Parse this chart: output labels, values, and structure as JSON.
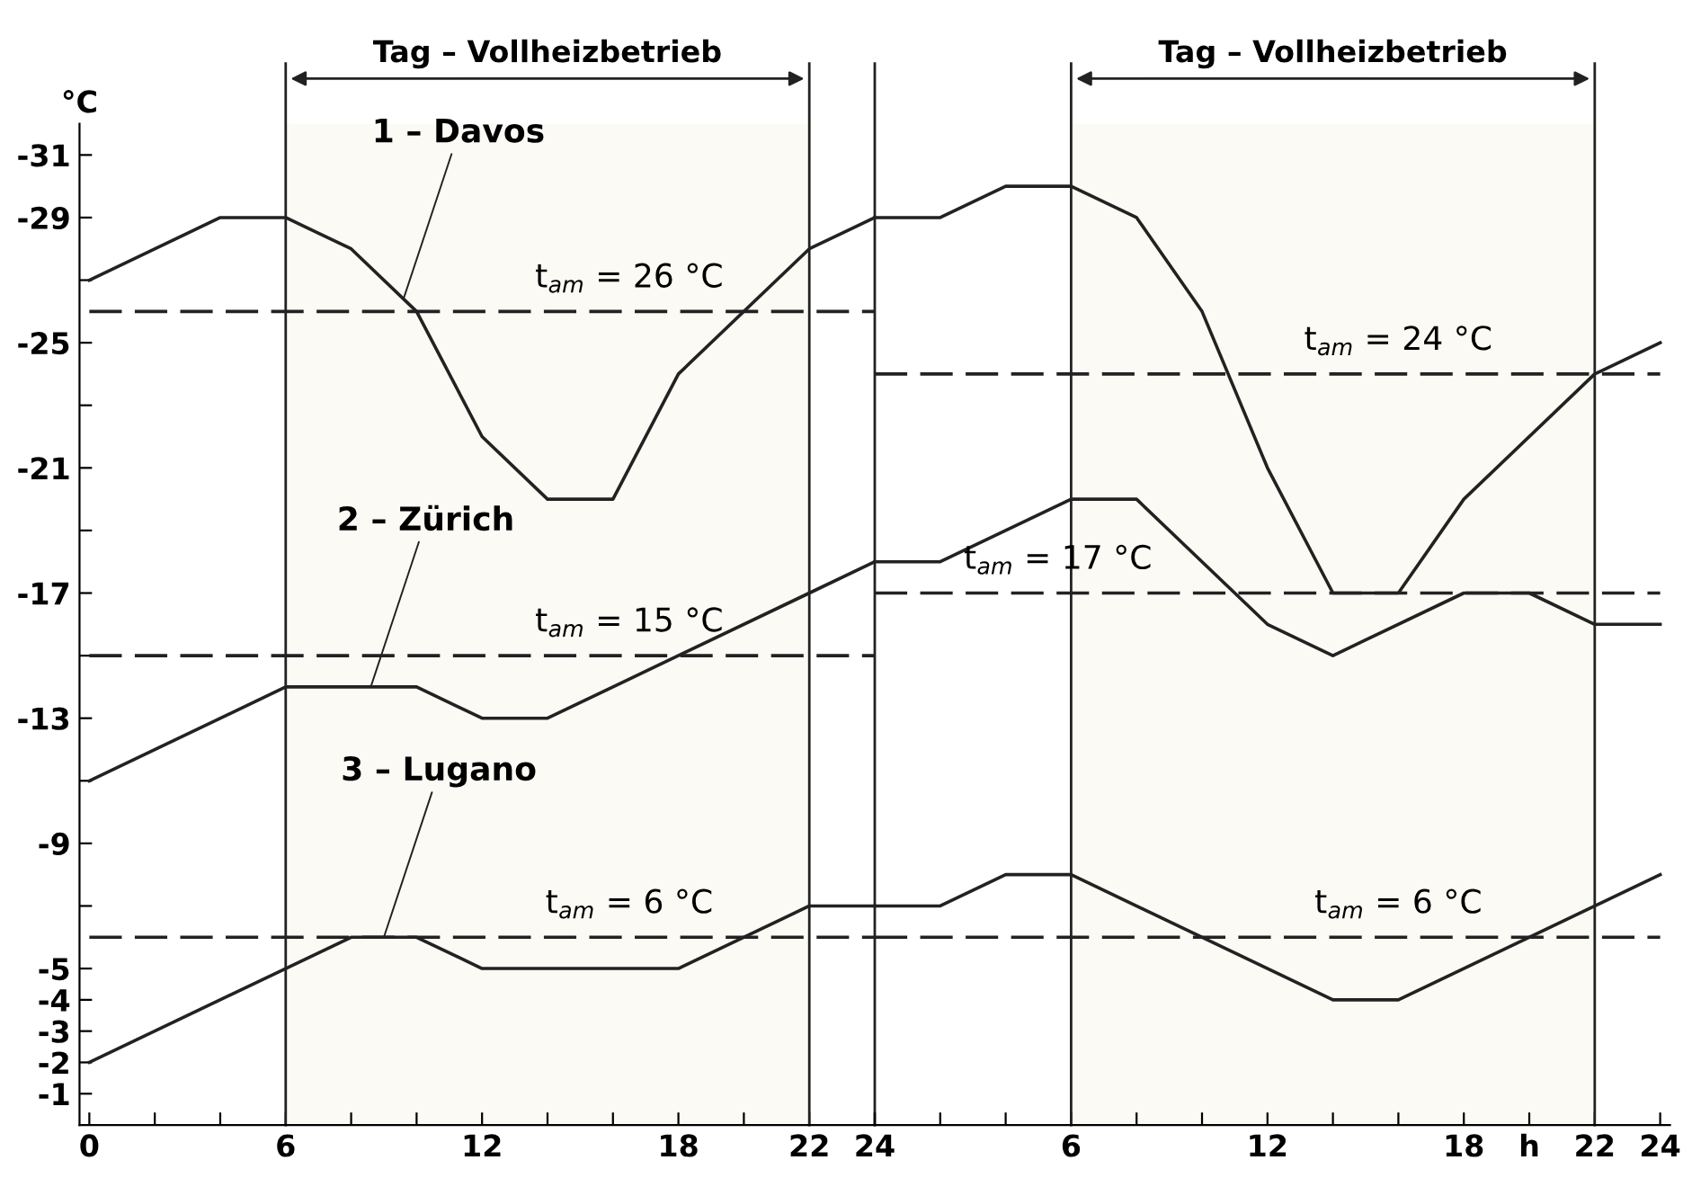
{
  "chart_data": [
    {
      "type": "line",
      "ylabel": "°C",
      "xlim": [
        -0.3,
        24
      ],
      "ylim": [
        0,
        -32
      ],
      "xticks": [
        0,
        {
          "value": 2,
          "label": null
        },
        {
          "value": 4,
          "label": null
        },
        6,
        {
          "value": 8,
          "label": null
        },
        {
          "value": 10,
          "label": null
        },
        12,
        {
          "value": 14,
          "label": null
        },
        {
          "value": 16,
          "label": null
        },
        18,
        {
          "value": 20,
          "label": null
        },
        22,
        24
      ],
      "yticks": [
        -31,
        -29,
        {
          "value": -27,
          "label": null
        },
        -25,
        {
          "value": -23,
          "label": null
        },
        -21,
        {
          "value": -19,
          "label": null
        },
        -17,
        {
          "value": -15,
          "label": null
        },
        -13,
        {
          "value": -11,
          "label": null
        },
        -9,
        {
          "value": -7,
          "label": null
        },
        -5,
        -4,
        -3,
        -2,
        -1
      ],
      "grid": false,
      "marker": "none",
      "series": [
        {
          "color": "#222222",
          "line_style": "solid",
          "x": [
            0,
            4,
            6,
            8,
            10,
            12,
            14,
            16,
            18,
            22,
            24
          ],
          "values": [
            -27,
            -29,
            -29,
            -28,
            -26,
            -22,
            -20,
            -20,
            -24,
            -28,
            -29
          ]
        },
        {
          "color": "#222222",
          "line_style": "solid",
          "x": [
            0,
            6,
            10,
            12,
            14,
            22,
            24
          ],
          "values": [
            -11,
            -14,
            -14,
            -13,
            -13,
            -17,
            -18
          ]
        },
        {
          "color": "#222222",
          "line_style": "solid",
          "x": [
            0,
            6,
            8,
            10,
            12,
            18,
            22,
            24
          ],
          "values": [
            -2,
            -5,
            -6,
            -6,
            -5,
            -5,
            -7,
            -7
          ]
        },
        {
          "color": "#222222",
          "line_style": "dashed",
          "x": [
            0,
            24
          ],
          "values": [
            -26,
            -26
          ]
        },
        {
          "color": "#222222",
          "line_style": "dashed",
          "x": [
            0,
            24
          ],
          "values": [
            -15,
            -15
          ]
        },
        {
          "color": "#222222",
          "line_style": "dashed",
          "x": [
            0,
            24
          ],
          "values": [
            -6,
            -6
          ]
        }
      ],
      "ref_lines": [
        {
          "axis": "x",
          "value": 6,
          "color": "#222222",
          "line_style": "solid"
        },
        {
          "axis": "x",
          "value": 22,
          "color": "#222222",
          "line_style": "solid"
        },
        {
          "axis": "x",
          "value": 24,
          "color": "#222222",
          "line_style": "solid"
        }
      ],
      "bands": [
        {
          "axis": "x",
          "from": 6,
          "to": 22,
          "label": "Tag – Vollheizbetrieb",
          "color": "#fbfaf4"
        }
      ],
      "annotations": [
        {
          "text": "1 – Davos",
          "x": 9.6,
          "y": -26.4
        },
        {
          "text": "2 – Zürich",
          "x": 8.6,
          "y": -14
        },
        {
          "text": "3 – Lugano",
          "x": 9,
          "y": -6
        },
        {
          "text": "t$_{am}$ = 26 °C",
          "x": 16.5,
          "y": -26
        },
        {
          "text": "t$_{am}$ = 15 °C",
          "x": 16.5,
          "y": -15
        },
        {
          "text": "t$_{am}$ = 6 °C",
          "x": 16.5,
          "y": -6
        }
      ]
    },
    {
      "type": "line",
      "tick_labels": "x",
      "xlim": [
        0,
        24.3
      ],
      "ylim": [
        0,
        -32
      ],
      "xticks": [
        {
          "value": 0,
          "label": null
        },
        {
          "value": 2,
          "label": null
        },
        {
          "value": 4,
          "label": null
        },
        6,
        {
          "value": 8,
          "label": null
        },
        {
          "value": 10,
          "label": null
        },
        12,
        {
          "value": 14,
          "label": null
        },
        {
          "value": 16,
          "label": null
        },
        18,
        {
          "value": 20,
          "label": "h"
        },
        22,
        24
      ],
      "grid": false,
      "marker": "none",
      "series": [
        {
          "color": "#222222",
          "line_style": "solid",
          "x": [
            0,
            2,
            4,
            6,
            8,
            10,
            12,
            14,
            16,
            18,
            22,
            24
          ],
          "values": [
            -29,
            -29,
            -30,
            -30,
            -29,
            -26,
            -21,
            -17,
            -17,
            -20,
            -24,
            -25
          ]
        },
        {
          "color": "#222222",
          "line_style": "solid",
          "x": [
            0,
            2,
            6,
            8,
            12,
            14,
            18,
            20,
            22,
            24
          ],
          "values": [
            -18,
            -18,
            -20,
            -20,
            -16,
            -15,
            -17,
            -17,
            -16,
            -16
          ]
        },
        {
          "color": "#222222",
          "line_style": "solid",
          "x": [
            0,
            2,
            4,
            6,
            14,
            16,
            24
          ],
          "values": [
            -7,
            -7,
            -8,
            -8,
            -4,
            -4,
            -8
          ]
        },
        {
          "color": "#222222",
          "line_style": "dashed",
          "x": [
            0,
            24
          ],
          "values": [
            -24,
            -24
          ]
        },
        {
          "color": "#222222",
          "line_style": "dashed",
          "x": [
            0,
            24
          ],
          "values": [
            -17,
            -17
          ]
        },
        {
          "color": "#222222",
          "line_style": "dashed",
          "x": [
            0,
            24
          ],
          "values": [
            -6,
            -6
          ]
        }
      ],
      "ref_lines": [
        {
          "axis": "x",
          "value": 6,
          "color": "#222222",
          "line_style": "solid"
        },
        {
          "axis": "x",
          "value": 22,
          "color": "#222222",
          "line_style": "solid"
        }
      ],
      "bands": [
        {
          "axis": "x",
          "from": 6,
          "to": 22,
          "label": "Tag – Vollheizbetrieb",
          "color": "#fbfaf4"
        }
      ],
      "annotations": [
        {
          "text": "t$_{am}$ = 24 °C",
          "x": 16,
          "y": -24
        },
        {
          "text": "t$_{am}$ = 17 °C",
          "x": 5.6,
          "y": -17
        },
        {
          "text": "t$_{am}$ = 6 °C",
          "x": 16,
          "y": -6
        }
      ]
    }
  ]
}
